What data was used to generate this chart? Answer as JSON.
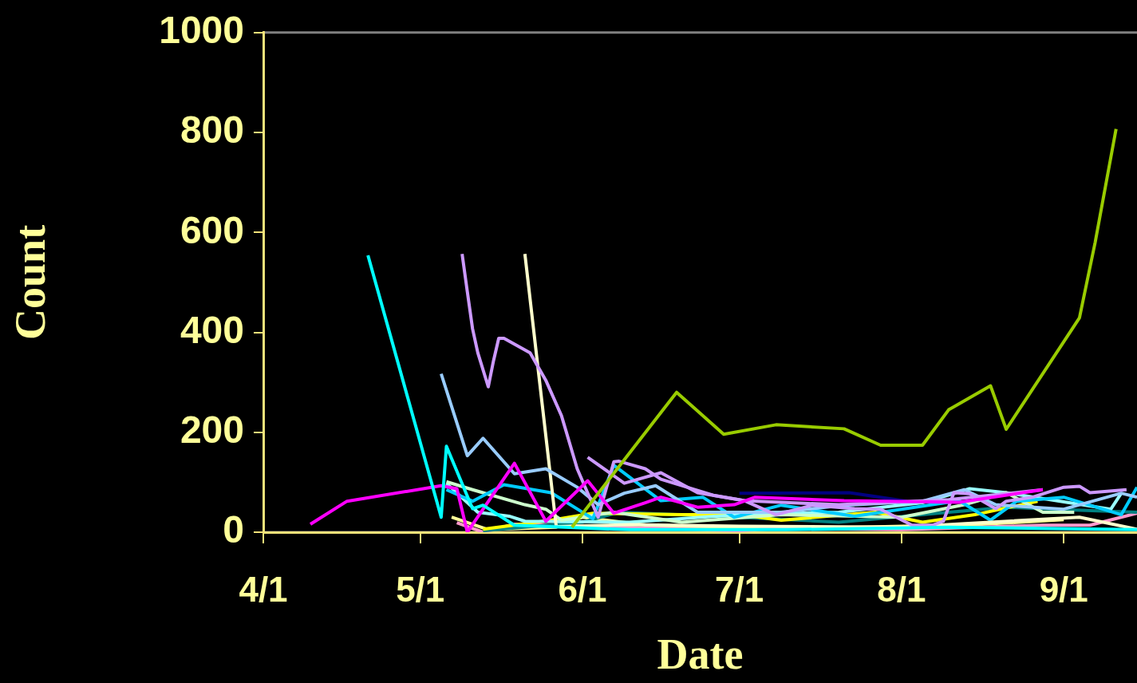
{
  "chart_data": {
    "type": "line",
    "xlabel": "Date",
    "ylabel": "Count",
    "xlim": [
      "--04-01",
      "--09-15"
    ],
    "ylim": [
      0,
      1000
    ],
    "xticks": [
      {
        "value": "--04-01",
        "label": "4/1"
      },
      {
        "value": "--05-01",
        "label": "5/1"
      },
      {
        "value": "--06-01",
        "label": "6/1"
      },
      {
        "value": "--07-01",
        "label": "7/1"
      },
      {
        "value": "--08-01",
        "label": "8/1"
      },
      {
        "value": "--09-01",
        "label": "9/1"
      }
    ],
    "yticks": [
      0,
      200,
      400,
      600,
      800,
      1000
    ],
    "grid": false,
    "legend": false,
    "marker": "none",
    "line_style": "solid",
    "series": [
      {
        "color": "#99cc00",
        "x": [
          "--05-30",
          "--06-19",
          "--06-28",
          "--07-08",
          "--07-21",
          "--07-28",
          "--08-05",
          "--08-10",
          "--08-18",
          "--08-21",
          "--09-04",
          "--09-07",
          "--09-11"
        ],
        "values": [
          10,
          280,
          196,
          215,
          207,
          174,
          174,
          245,
          293,
          206,
          429,
          580,
          807
        ]
      },
      {
        "color": "#00ffff",
        "x": [
          "--04-21",
          "--05-05",
          "--05-06",
          "--05-11",
          "--05-13",
          "--05-19",
          "--06-10",
          "--07-10",
          "--08-10",
          "--09-15"
        ],
        "values": [
          554,
          30,
          172,
          47,
          54,
          14,
          5,
          5,
          10,
          5
        ]
      },
      {
        "color": "#ff00ff",
        "x": [
          "--04-10",
          "--04-17",
          "--05-05",
          "--05-08",
          "--05-10",
          "--05-19",
          "--05-25",
          "--06-02",
          "--06-07",
          "--06-13",
          "--06-16",
          "--06-23",
          "--06-30",
          "--07-04",
          "--07-21",
          "--08-12",
          "--08-28"
        ],
        "values": [
          16,
          62,
          93,
          87,
          0,
          138,
          22,
          103,
          38,
          59,
          70,
          50,
          55,
          70,
          63,
          60,
          85
        ]
      },
      {
        "color": "#cc99ff",
        "x": [
          "--05-09",
          "--05-10",
          "--05-11",
          "--05-12",
          "--05-14",
          "--05-15",
          "--05-16",
          "--05-17",
          "--05-22",
          "--05-25",
          "--05-28",
          "--05-31",
          "--06-04",
          "--06-07",
          "--06-08",
          "--06-13",
          "--06-16",
          "--06-26",
          "--07-02",
          "--07-08",
          "--07-15",
          "--07-23",
          "--07-28",
          "--08-03",
          "--08-07",
          "--08-09",
          "--08-11",
          "--08-14",
          "--08-19",
          "--08-21",
          "--08-26",
          "--09-01",
          "--09-04",
          "--09-06",
          "--09-13"
        ],
        "values": [
          557,
          481,
          407,
          359,
          291,
          343,
          388,
          388,
          359,
          304,
          233,
          127,
          30,
          141,
          142,
          127,
          106,
          74,
          63,
          35,
          54,
          47,
          46,
          14,
          14,
          22,
          79,
          77,
          47,
          62,
          70,
          90,
          92,
          79,
          85
        ]
      },
      {
        "color": "#cc99ff",
        "x": [
          "--06-02",
          "--06-09",
          "--06-16",
          "--06-23",
          "--07-02",
          "--07-20",
          "--08-10",
          "--08-28"
        ],
        "values": [
          150,
          98,
          119,
          79,
          63,
          55,
          65,
          85
        ]
      },
      {
        "color": "#99ccff",
        "x": [
          "--05-05",
          "--05-10",
          "--05-13",
          "--05-19",
          "--05-25",
          "--05-31",
          "--06-04",
          "--06-09",
          "--06-15",
          "--06-23",
          "--07-09",
          "--07-21",
          "--08-05",
          "--08-13",
          "--08-19",
          "--09-01",
          "--09-12",
          "--09-15"
        ],
        "values": [
          317,
          153,
          188,
          117,
          127,
          90,
          55,
          78,
          93,
          40,
          40,
          54,
          62,
          85,
          55,
          46,
          78,
          70
        ]
      },
      {
        "color": "#ffffcc",
        "x": [
          "--05-21",
          "--05-27",
          "--06-10",
          "--07-01",
          "--08-01",
          "--09-04",
          "--09-15"
        ],
        "values": [
          557,
          11,
          15,
          12,
          10,
          30,
          6
        ]
      },
      {
        "color": "#00ccff",
        "x": [
          "--05-06",
          "--05-11",
          "--05-17",
          "--05-26",
          "--06-03",
          "--06-07",
          "--06-16",
          "--06-24",
          "--06-30",
          "--07-09",
          "--07-23",
          "--08-12",
          "--08-18",
          "--08-23",
          "--09-01",
          "--09-12",
          "--09-15"
        ],
        "values": [
          85,
          62,
          95,
          79,
          27,
          134,
          63,
          70,
          30,
          54,
          32,
          63,
          24,
          62,
          70,
          35,
          90
        ]
      },
      {
        "color": "#ccffcc",
        "x": [
          "--05-06",
          "--05-11",
          "--05-21",
          "--05-25",
          "--05-28",
          "--06-07",
          "--06-20",
          "--07-09",
          "--08-01",
          "--08-13",
          "--08-21",
          "--08-28",
          "--09-03"
        ],
        "values": [
          101,
          85,
          55,
          46,
          24,
          40,
          20,
          35,
          30,
          55,
          79,
          40,
          40
        ]
      },
      {
        "color": "#99ffff",
        "x": [
          "--05-06",
          "--05-12",
          "--05-18",
          "--05-21",
          "--06-10",
          "--07-01",
          "--07-20",
          "--08-05",
          "--08-14",
          "--08-21",
          "--09-10",
          "--09-12"
        ],
        "values": [
          98,
          40,
          32,
          22,
          20,
          35,
          40,
          59,
          87,
          79,
          46,
          78
        ]
      },
      {
        "color": "#ffff00",
        "x": [
          "--05-13",
          "--05-26",
          "--06-03",
          "--06-20",
          "--07-01",
          "--07-09",
          "--07-27",
          "--08-05",
          "--08-15",
          "--08-27"
        ],
        "values": [
          6,
          24,
          38,
          35,
          35,
          24,
          40,
          20,
          35,
          62
        ]
      },
      {
        "color": "#008080",
        "x": [
          "--05-13",
          "--06-01",
          "--06-08",
          "--07-01",
          "--07-20",
          "--08-10",
          "--08-21",
          "--09-01",
          "--09-15"
        ],
        "values": [
          3,
          20,
          40,
          30,
          20,
          40,
          50,
          45,
          40
        ]
      },
      {
        "color": "#000080",
        "x": [
          "--07-01",
          "--07-22",
          "--07-28",
          "--08-02"
        ],
        "values": [
          78,
          79,
          70,
          62
        ]
      },
      {
        "color": "#ff99cc",
        "x": [
          "--05-08",
          "--05-13",
          "--05-19",
          "--06-04",
          "--07-01",
          "--07-09",
          "--08-01",
          "--08-10",
          "--08-28",
          "--09-06",
          "--09-15"
        ],
        "values": [
          19,
          0,
          16,
          11,
          3,
          8,
          5,
          8,
          14,
          14,
          38
        ]
      },
      {
        "color": "#ffff99",
        "x": [
          "--05-07",
          "--05-14",
          "--05-27",
          "--06-01",
          "--06-15",
          "--07-15",
          "--08-15",
          "--09-01"
        ],
        "values": [
          30,
          5,
          10,
          30,
          12,
          8,
          15,
          25
        ]
      }
    ]
  }
}
